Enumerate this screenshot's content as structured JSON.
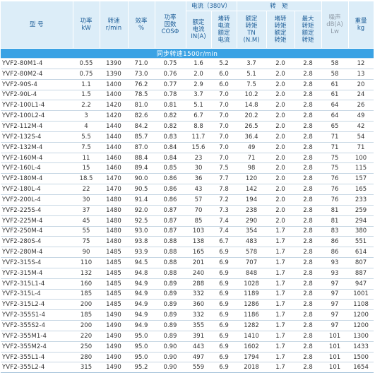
{
  "headers": {
    "model": "型 号",
    "power": "功率\nkW",
    "speed": "转速\nr/min",
    "efficiency": "效率\n%",
    "power_factor": "功率\n因数\nCOSΦ",
    "current_group": "电流（380V）",
    "rated_current": "额定\n电流\nIN(A)",
    "locked_current_ratio": "堵转\n电流\n额定\n电流",
    "torque_group": "转　矩",
    "rated_torque": "额定\n转矩\nTN\n(N.M)",
    "locked_torque_ratio": "堵转\n转矩\n额定\n转矩",
    "max_torque_ratio": "最大\n转矩\n额定\n转矩",
    "noise": "噪声\ndB(A)\nLw",
    "weight": "重量\nkg"
  },
  "band_label": "同步转速1500r/min",
  "rows": [
    [
      "YVF2-80M1-4",
      "0.55",
      "1390",
      "71.0",
      "0.75",
      "1.6",
      "5.2",
      "3.7",
      "2.0",
      "2.8",
      "58",
      "12"
    ],
    [
      "YVF2-80M2-4",
      "0.75",
      "1390",
      "73.0",
      "0.76",
      "2.0",
      "6.0",
      "5.1",
      "2.0",
      "2.8",
      "58",
      "13"
    ],
    [
      "YVF2-90S-4",
      "1.1",
      "1400",
      "76.2",
      "0.77",
      "2.9",
      "6.0",
      "7.5",
      "2.0",
      "2.8",
      "61",
      "20"
    ],
    [
      "YVF2-90L-4",
      "1.5",
      "1400",
      "78.5",
      "0.78",
      "3.7",
      "7.0",
      "10.2",
      "2.0",
      "2.8",
      "61",
      "24"
    ],
    [
      "YVF2-100L1-4",
      "2.2",
      "1420",
      "81.0",
      "0.81",
      "5.1",
      "7.0",
      "14.8",
      "2.0",
      "2.8",
      "64",
      "26"
    ],
    [
      "YVF2-100L2-4",
      "3",
      "1420",
      "82.6",
      "0.82",
      "6.7",
      "7.0",
      "20.2",
      "2.0",
      "2.8",
      "64",
      "49"
    ],
    [
      "YVF2-112M-4",
      "4",
      "1440",
      "84.2",
      "0.82",
      "8.8",
      "7.0",
      "26.5",
      "2.0",
      "2.8",
      "65",
      "42"
    ],
    [
      "YVF2-132S-4",
      "5.5",
      "1440",
      "85.7",
      "0.83",
      "11.7",
      "7.0",
      "36.4",
      "2.0",
      "2.8",
      "71",
      "54"
    ],
    [
      "YVF2-132M-4",
      "7.5",
      "1440",
      "87.0",
      "0.84",
      "15.6",
      "7.0",
      "49",
      "2.0",
      "2.8",
      "71",
      "71"
    ],
    [
      "YVF2-160M-4",
      "11",
      "1460",
      "88.4",
      "0.84",
      "23",
      "7.0",
      "71",
      "2.0",
      "2.8",
      "75",
      "100"
    ],
    [
      "YVF2-160L-4",
      "15",
      "1460",
      "89.4",
      "0.85",
      "30",
      "7.5",
      "98",
      "2.0",
      "2.8",
      "75",
      "115"
    ],
    [
      "YVF2-180M-4",
      "18.5",
      "1470",
      "90.0",
      "0.86",
      "36",
      "7.7",
      "120",
      "2.0",
      "2.8",
      "76",
      "157"
    ],
    [
      "YVF2-180L-4",
      "22",
      "1470",
      "90.5",
      "0.86",
      "43",
      "7.8",
      "142",
      "2.0",
      "2.8",
      "76",
      "165"
    ],
    [
      "YVF2-200L-4",
      "30",
      "1480",
      "91.4",
      "0.86",
      "57",
      "7.2",
      "194",
      "2.0",
      "2.8",
      "76",
      "233"
    ],
    [
      "YVF2-225S-4",
      "37",
      "1480",
      "92.0",
      "0.87",
      "70",
      "7.3",
      "238",
      "2.0",
      "2.8",
      "81",
      "259"
    ],
    [
      "YVF2-225M-4",
      "45",
      "1480",
      "92.5",
      "0.87",
      "85",
      "7.4",
      "290",
      "2.0",
      "2.8",
      "81",
      "294"
    ],
    [
      "YVF2-250M-4",
      "55",
      "1480",
      "93.0",
      "0.87",
      "103",
      "7.4",
      "354",
      "1.7",
      "2.8",
      "83",
      "380"
    ],
    [
      "YVF2-280S-4",
      "75",
      "1480",
      "93.8",
      "0.88",
      "138",
      "6.7",
      "483",
      "1.7",
      "2.8",
      "86",
      "551"
    ],
    [
      "YVF2-280M-4",
      "90",
      "1485",
      "93.9",
      "0.88",
      "165",
      "6.9",
      "578",
      "1.7",
      "2.8",
      "86",
      "614"
    ],
    [
      "YVF2-315S-4",
      "110",
      "1485",
      "94.5",
      "0.88",
      "201",
      "6.9",
      "707",
      "1.7",
      "2.8",
      "93",
      "807"
    ],
    [
      "YVF2-315M-4",
      "132",
      "1485",
      "94.8",
      "0.88",
      "240",
      "6.9",
      "848",
      "1.7",
      "2.8",
      "93",
      "887"
    ],
    [
      "YVF2-315L1-4",
      "160",
      "1485",
      "94.9",
      "0.89",
      "288",
      "6.9",
      "1028",
      "1.7",
      "2.8",
      "97",
      "947"
    ],
    [
      "YVF2-315L-4",
      "185",
      "1485",
      "94.9",
      "0.89",
      "332",
      "6.9",
      "1189",
      "1.7",
      "2.8",
      "97",
      "1001"
    ],
    [
      "YVF2-315L2-4",
      "200",
      "1485",
      "94.9",
      "0.89",
      "360",
      "6.9",
      "1286",
      "1.7",
      "2.8",
      "97",
      "1108"
    ],
    [
      "YVF2-355S1-4",
      "185",
      "1490",
      "94.9",
      "0.89",
      "332",
      "6.9",
      "1186",
      "1.7",
      "2.8",
      "97",
      "1200"
    ],
    [
      "YVF2-355S2-4",
      "200",
      "1490",
      "94.9",
      "0.89",
      "355",
      "6.9",
      "1282",
      "1.7",
      "2.8",
      "97",
      "1200"
    ],
    [
      "YVF2-355M1-4",
      "220",
      "1490",
      "95.0",
      "0.89",
      "391",
      "6.9",
      "1410",
      "1.7",
      "2.8",
      "101",
      "1300"
    ],
    [
      "YVF2-355M2-4",
      "250",
      "1490",
      "95.0",
      "0.90",
      "443",
      "6.9",
      "1602",
      "1.7",
      "2.8",
      "101",
      "1433"
    ],
    [
      "YVF2-355L1-4",
      "280",
      "1490",
      "95.0",
      "0.90",
      "497",
      "6.9",
      "1794",
      "1.7",
      "2.8",
      "101",
      "1500"
    ],
    [
      "YVF2-355L2-4",
      "315",
      "1490",
      "95.2",
      "0.90",
      "559",
      "6.9",
      "2018",
      "1.7",
      "2.8",
      "101",
      "1654"
    ]
  ]
}
